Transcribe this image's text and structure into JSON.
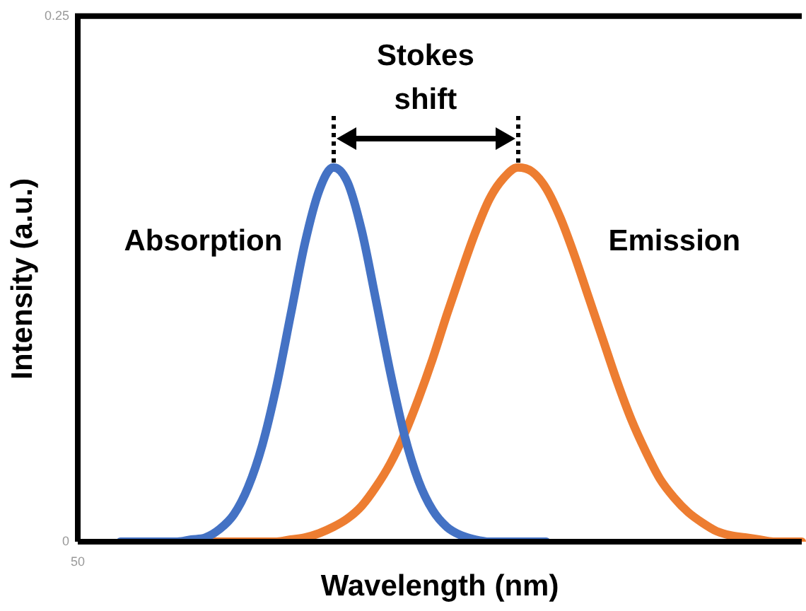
{
  "chart_data": {
    "type": "line",
    "xlabel": "Wavelength (nm)",
    "ylabel": "Intensity (a.u.)",
    "categories": [
      null,
      null,
      null,
      null,
      null,
      null,
      null,
      null,
      null,
      null,
      null,
      null,
      null,
      null,
      null,
      null,
      null,
      null,
      null,
      null,
      null,
      null,
      null,
      null,
      null,
      null,
      null,
      null,
      null,
      null,
      null,
      null,
      null,
      null,
      null,
      null,
      null,
      null,
      null,
      null,
      null,
      null,
      null,
      null,
      null,
      null,
      null,
      null,
      null,
      null,
      null,
      null
    ],
    "series": [
      {
        "name": "Absorption",
        "color": "#4472c4",
        "values": [
          null,
          null,
          null,
          0,
          0,
          0,
          0,
          0,
          0.001,
          0.002,
          0.006,
          0.013,
          0.026,
          0.046,
          0.074,
          0.108,
          0.142,
          0.167,
          0.178,
          0.171,
          0.148,
          0.115,
          0.081,
          0.051,
          0.029,
          0.015,
          0.007,
          0.003,
          0.001,
          0,
          0,
          0,
          0,
          0,
          null,
          null,
          null,
          null,
          null,
          null,
          null,
          null,
          null,
          null,
          null,
          null,
          null,
          null,
          null,
          null,
          null,
          null
        ]
      },
      {
        "name": "Emission",
        "color": "#ed7d31",
        "values": [
          null,
          null,
          null,
          null,
          null,
          null,
          null,
          null,
          null,
          0,
          0,
          0,
          0,
          0,
          0,
          0.001,
          0.002,
          0.004,
          0.007,
          0.011,
          0.017,
          0.026,
          0.037,
          0.051,
          0.068,
          0.087,
          0.108,
          0.128,
          0.147,
          0.163,
          0.173,
          0.178,
          0.176,
          0.168,
          0.154,
          0.136,
          0.116,
          0.096,
          0.076,
          0.058,
          0.043,
          0.03,
          0.021,
          0.014,
          0.009,
          0.005,
          0.003,
          0.002,
          0.001,
          0,
          0,
          0
        ]
      }
    ],
    "ylim": [
      0,
      0.25
    ],
    "yticks": [
      0,
      0.25
    ],
    "grid": false,
    "legend": false,
    "marker": "none",
    "line_style": "solid",
    "annotations": [
      "Stokes shift",
      "50"
    ]
  }
}
